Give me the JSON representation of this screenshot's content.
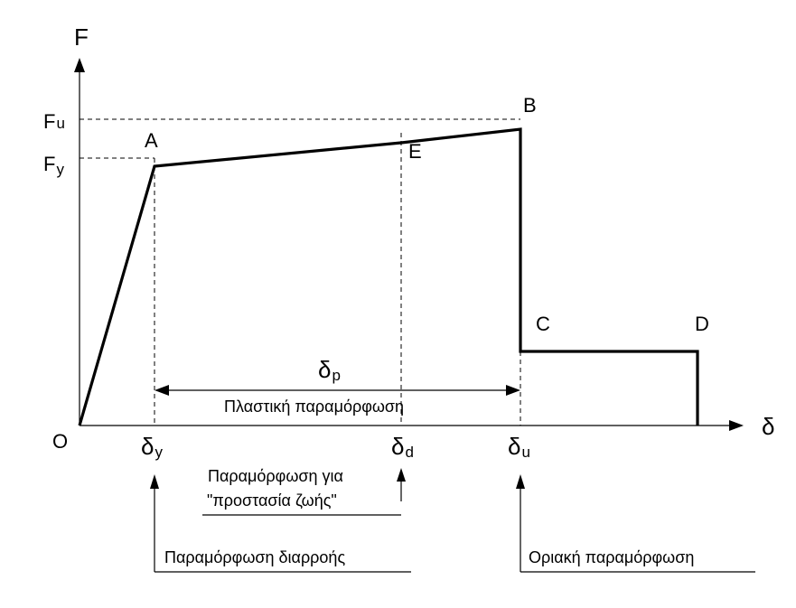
{
  "chart_data": {
    "type": "line",
    "title": "",
    "xlabel": "δ",
    "ylabel": "F",
    "points": [
      {
        "name": "O",
        "x": 0,
        "y": 0
      },
      {
        "name": "A",
        "x": 83,
        "y": 287
      },
      {
        "name": "E",
        "x": 356,
        "y": 313
      },
      {
        "name": "B",
        "x": 488,
        "y": 328
      },
      {
        "name": "C",
        "x": 488,
        "y": 82
      },
      {
        "name": "D",
        "x": 684,
        "y": 82
      }
    ],
    "curve_end": {
      "x": 684,
      "y": 0
    },
    "y_levels": {
      "Fy": 287,
      "Fu": 328
    },
    "x_levels": {
      "dy": 83,
      "dd": 356,
      "du": 488
    },
    "xlim": [
      0,
      740
    ],
    "ylim": [
      0,
      430
    ]
  },
  "axis": {
    "y_symbol": "F",
    "x_symbol": "δ",
    "origin": "O"
  },
  "y_ticks": [
    {
      "main": "F",
      "sub": "u"
    },
    {
      "main": "F",
      "sub": "y"
    }
  ],
  "x_ticks": [
    {
      "main": "δ",
      "sub": "y"
    },
    {
      "main": "δ",
      "sub": "d"
    },
    {
      "main": "δ",
      "sub": "u"
    }
  ],
  "plastic": {
    "main": "δ",
    "sub": "p",
    "label": "Πλαστική παραμόρφωση"
  },
  "notes": {
    "life_safety_line1": "Παραμόρφωση για",
    "life_safety_line2": "\"προστασία ζωής\"",
    "yield": "Παραμόρφωση διαρροής",
    "ultimate": "Οριακή παραμόρφωση"
  },
  "colors": {
    "ink": "#000000",
    "background": "#ffffff"
  }
}
